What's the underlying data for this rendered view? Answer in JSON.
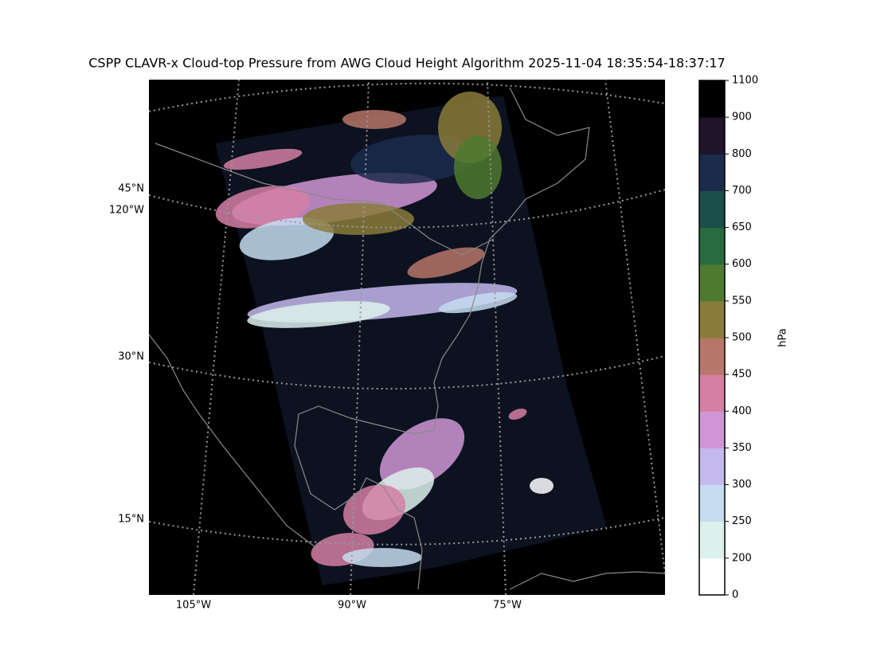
{
  "title": "CSPP CLAVR-x Cloud-top Pressure from AWG Cloud Height Algorithm 2025-11-04 18:35:54-18:37:17",
  "map": {
    "lat_labels": [
      "45°N",
      "30°N",
      "15°N"
    ],
    "lon_label_left": "120°W",
    "lon_labels_bottom": [
      "105°W",
      "90°W",
      "75°W"
    ]
  },
  "colorbar": {
    "label": "hPa",
    "bounds": [
      0,
      200,
      250,
      300,
      350,
      400,
      450,
      500,
      550,
      600,
      650,
      700,
      800,
      900,
      1100
    ],
    "colors": [
      "#ffffff",
      "#ddf1ec",
      "#c6dcf0",
      "#c4b9ee",
      "#d196d6",
      "#d57fa4",
      "#b77668",
      "#8a7b3a",
      "#4d7a2f",
      "#276b3e",
      "#1b4f4c",
      "#1b2b4c",
      "#1f1429",
      "#000000"
    ]
  }
}
